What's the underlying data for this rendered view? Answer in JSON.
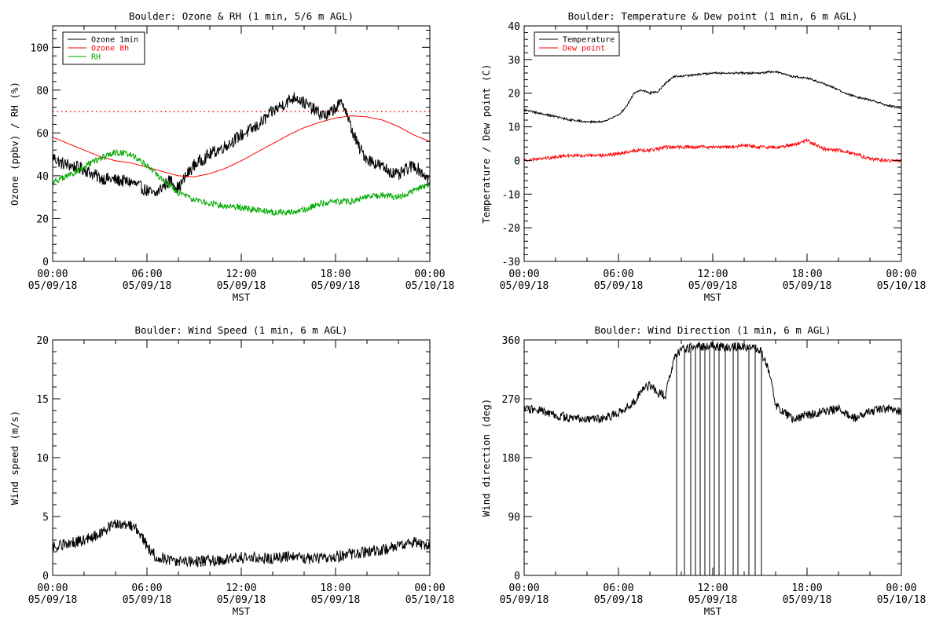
{
  "figure": {
    "background": "#ffffff"
  },
  "chart_data": [
    {
      "type": "line",
      "title": "Boulder: Ozone & RH (1 min, 5/6 m AGL)",
      "xlabel": "MST",
      "ylabel": "Ozone (ppbv) / RH (%)",
      "xlim": [
        0,
        24
      ],
      "ylim": [
        0,
        110
      ],
      "x_ticks": [
        0,
        6,
        12,
        18,
        24
      ],
      "x_tick_labels": [
        [
          "00:00",
          "05/09/18"
        ],
        [
          "06:00",
          "05/09/18"
        ],
        [
          "12:00",
          "05/09/18"
        ],
        [
          "18:00",
          "05/09/18"
        ],
        [
          "00:00",
          "05/10/18"
        ]
      ],
      "y_ticks": [
        0,
        20,
        40,
        60,
        80,
        100
      ],
      "y_tick_labels": [
        "0",
        "20",
        "40",
        "60",
        "80",
        "100"
      ],
      "legend": {
        "placement": "top-left"
      },
      "reference_lines": [
        {
          "y": 70,
          "color": "#ff0000",
          "style": "dotted"
        }
      ],
      "series": [
        {
          "name": "Ozone 1min",
          "color": "#000000",
          "noise": 3,
          "x": [
            0,
            0.5,
            1,
            2,
            3,
            4,
            5,
            6,
            6.5,
            7,
            7.5,
            8,
            8.5,
            9,
            10,
            11,
            12,
            13,
            14,
            15,
            15.5,
            16,
            17,
            17.5,
            18,
            18.5,
            19,
            19.5,
            20,
            21,
            22,
            22.5,
            23,
            24
          ],
          "y": [
            49,
            46,
            45,
            43,
            39,
            38,
            37,
            33,
            31,
            35,
            38,
            34,
            40,
            45,
            50,
            54,
            59,
            63,
            70,
            75,
            77,
            74,
            69,
            68,
            72,
            74,
            62,
            53,
            48,
            44,
            40,
            43,
            45,
            38
          ]
        },
        {
          "name": "Ozone 8h",
          "color": "#ff0000",
          "noise": 0,
          "x": [
            0,
            1,
            2,
            3,
            4,
            5,
            6,
            7,
            8,
            9,
            10,
            11,
            12,
            13,
            14,
            15,
            16,
            17,
            18,
            19,
            20,
            21,
            22,
            23,
            24
          ],
          "y": [
            58,
            55,
            52,
            49,
            47,
            46,
            44,
            42,
            40,
            39.5,
            41,
            43.5,
            47,
            51,
            55,
            59,
            62.5,
            65,
            67,
            68,
            67.5,
            66,
            63,
            59,
            56
          ]
        },
        {
          "name": "RH",
          "color": "#00aa00",
          "noise": 1.5,
          "x": [
            0,
            1,
            2,
            3,
            4,
            5,
            6,
            7,
            8,
            9,
            10,
            11,
            12,
            13,
            14,
            15,
            16,
            17,
            18,
            19,
            20,
            21,
            22,
            23,
            24
          ],
          "y": [
            37,
            40,
            44,
            48,
            51,
            50,
            45,
            38,
            32,
            29,
            27,
            26,
            25,
            24,
            23,
            23,
            24,
            27,
            28,
            28,
            30,
            31,
            30,
            33,
            36
          ]
        }
      ]
    },
    {
      "type": "line",
      "title": "Boulder: Temperature & Dew point (1 min, 6 m AGL)",
      "xlabel": "MST",
      "ylabel": "Temperature / Dew point (C)",
      "xlim": [
        0,
        24
      ],
      "ylim": [
        -30,
        40
      ],
      "x_ticks": [
        0,
        6,
        12,
        18,
        24
      ],
      "x_tick_labels": [
        [
          "00:00",
          "05/09/18"
        ],
        [
          "06:00",
          "05/09/18"
        ],
        [
          "12:00",
          "05/09/18"
        ],
        [
          "18:00",
          "05/09/18"
        ],
        [
          "00:00",
          "05/10/18"
        ]
      ],
      "y_ticks": [
        -30,
        -20,
        -10,
        0,
        10,
        20,
        30,
        40
      ],
      "y_tick_labels": [
        "-30",
        "-20",
        "-10",
        "0",
        "10",
        "20",
        "30",
        "40"
      ],
      "legend": {
        "placement": "top-left"
      },
      "series": [
        {
          "name": "Temperature",
          "color": "#000000",
          "noise": 0.3,
          "x": [
            0,
            1,
            2,
            3,
            4,
            5,
            6,
            6.5,
            7,
            7.5,
            8,
            8.5,
            9,
            9.5,
            10,
            11,
            12,
            13,
            14,
            15,
            16,
            17,
            18,
            19,
            20,
            21,
            22,
            23,
            24
          ],
          "y": [
            15,
            14,
            13,
            12,
            11.5,
            11.5,
            13.5,
            16,
            20,
            21,
            20,
            20.5,
            23,
            25,
            25,
            25.5,
            26,
            26,
            26,
            26,
            26.5,
            25,
            24.5,
            23,
            21,
            19,
            18,
            16.5,
            15.5
          ]
        },
        {
          "name": "Dew point",
          "color": "#ff0000",
          "noise": 0.5,
          "x": [
            0,
            1,
            2,
            3,
            4,
            5,
            6,
            7,
            8,
            9,
            10,
            11,
            12,
            13,
            14,
            15,
            16,
            17,
            18,
            19,
            20,
            21,
            22,
            23,
            24
          ],
          "y": [
            0,
            0.5,
            1,
            1.5,
            1.5,
            1.5,
            2,
            3,
            3,
            4,
            4,
            4,
            4,
            4,
            4.5,
            4,
            4,
            4.5,
            6,
            3.5,
            3,
            2,
            0.5,
            0,
            0
          ]
        }
      ]
    },
    {
      "type": "line",
      "title": "Boulder: Wind Speed (1 min, 6 m AGL)",
      "xlabel": "MST",
      "ylabel": "Wind speed (m/s)",
      "xlim": [
        0,
        24
      ],
      "ylim": [
        0,
        20
      ],
      "x_ticks": [
        0,
        6,
        12,
        18,
        24
      ],
      "x_tick_labels": [
        [
          "00:00",
          "05/09/18"
        ],
        [
          "06:00",
          "05/09/18"
        ],
        [
          "12:00",
          "05/09/18"
        ],
        [
          "18:00",
          "05/09/18"
        ],
        [
          "00:00",
          "05/10/18"
        ]
      ],
      "y_ticks": [
        0,
        5,
        10,
        15,
        20
      ],
      "y_tick_labels": [
        "0",
        "5",
        "10",
        "15",
        "20"
      ],
      "series": [
        {
          "name": "",
          "color": "#000000",
          "noise": 0.5,
          "x": [
            0,
            1,
            2,
            3,
            3.5,
            4,
            4.5,
            5,
            5.5,
            6,
            6.5,
            7,
            8,
            9,
            10,
            11,
            12,
            13,
            14,
            15,
            16,
            17,
            18,
            19,
            20,
            21,
            22,
            23,
            24
          ],
          "y": [
            2.5,
            2.7,
            3,
            3.5,
            4,
            4.3,
            4.3,
            4.2,
            3.8,
            2.5,
            1.7,
            1.4,
            1.2,
            1.2,
            1.2,
            1.3,
            1.5,
            1.5,
            1.4,
            1.6,
            1.4,
            1.5,
            1.6,
            1.8,
            2,
            2.2,
            2.5,
            2.8,
            2.5
          ]
        }
      ]
    },
    {
      "type": "line",
      "title": "Boulder: Wind Direction (1 min, 6 m AGL)",
      "xlabel": "MST",
      "ylabel": "Wind direction (deg)",
      "xlim": [
        0,
        24
      ],
      "ylim": [
        0,
        360
      ],
      "x_ticks": [
        0,
        6,
        12,
        18,
        24
      ],
      "x_tick_labels": [
        [
          "00:00",
          "05/09/18"
        ],
        [
          "06:00",
          "05/09/18"
        ],
        [
          "12:00",
          "05/09/18"
        ],
        [
          "18:00",
          "05/09/18"
        ],
        [
          "00:00",
          "05/10/18"
        ]
      ],
      "y_ticks": [
        0,
        90,
        180,
        270,
        360
      ],
      "y_tick_labels": [
        "0",
        "90",
        "180",
        "270",
        "360"
      ],
      "series": [
        {
          "name": "",
          "color": "#000000",
          "noise": 7,
          "x": [
            0,
            1,
            2,
            3,
            4,
            5,
            6,
            7,
            7.5,
            8,
            8.5,
            9,
            9.5,
            10,
            11,
            12,
            13,
            14,
            15,
            15.5,
            16,
            17,
            18,
            19,
            20,
            21,
            22,
            23,
            24
          ],
          "y": [
            255,
            252,
            245,
            240,
            238,
            240,
            248,
            265,
            285,
            290,
            280,
            275,
            330,
            345,
            350,
            350,
            350,
            350,
            345,
            320,
            260,
            240,
            245,
            250,
            255,
            240,
            250,
            255,
            250
          ],
          "drops": [
            9.7,
            10.2,
            10.6,
            10.9,
            11.2,
            11.5,
            11.8,
            12.1,
            12.4,
            12.8,
            13.3,
            13.6,
            14.3,
            14.7,
            15.1
          ]
        }
      ]
    }
  ]
}
